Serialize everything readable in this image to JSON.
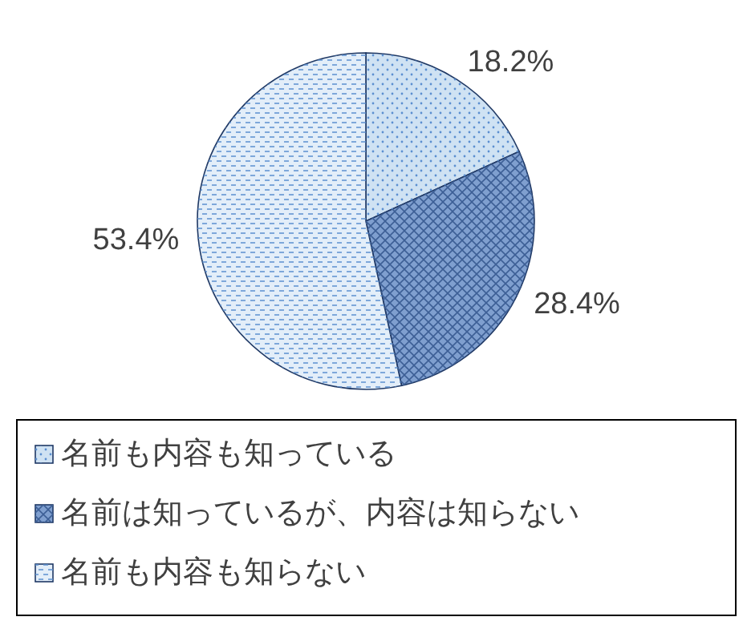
{
  "chart_data": {
    "type": "pie",
    "categories": [
      "名前も内容も知っている",
      "名前は知っているが、内容は知らない",
      "名前も内容も知らない"
    ],
    "values": [
      18.2,
      28.4,
      53.4
    ],
    "value_labels": [
      "18.2%",
      "28.4%",
      "53.4%"
    ],
    "colors": [
      "#cfe2f3",
      "#7f9fcf",
      "#e3eef9"
    ],
    "legend": "bottom"
  }
}
